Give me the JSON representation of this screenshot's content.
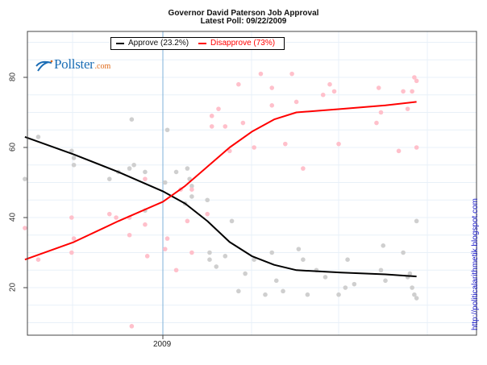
{
  "header": {
    "title": "Governor David Paterson Job Approval",
    "subtitle": "Latest Poll: 09/22/2009"
  },
  "legend": {
    "approve": "Approve (23.2%)",
    "disapprove": "Disapprove (73%)"
  },
  "logo": {
    "name": "Pollster",
    "suffix": ".com"
  },
  "side_url": "http://politicalarithmetik.blogspot.com",
  "axes": {
    "y_ticks": [
      "80",
      "60",
      "40",
      "20"
    ],
    "x_ticks": [
      "2009"
    ]
  },
  "colors": {
    "approve_line": "#000000",
    "disapprove_line": "#ff0000",
    "approve_point": "#cfcfcf",
    "disapprove_point": "#ffc0cb",
    "grid": "#e8f0f8",
    "year_marker": "#7fb2d8"
  },
  "chart_data": {
    "type": "scatter",
    "title": "Governor David Paterson Job Approval",
    "subtitle": "Latest Poll: 09/22/2009",
    "xlabel": "",
    "ylabel": "",
    "x_tick_labels": [
      "2009"
    ],
    "y_ticks": [
      20,
      40,
      60,
      80
    ],
    "ylim": [
      7,
      92
    ],
    "grid": true,
    "legend_position": "top",
    "note": "x values are approximate months relative to Jan 2009 (0 = Jan 1 2009); negative = 2008",
    "series": [
      {
        "name": "Approve",
        "latest": 23.2,
        "color": "#000000",
        "trend": [
          {
            "x": -6.2,
            "y": 63
          },
          {
            "x": -4.0,
            "y": 58
          },
          {
            "x": -2.0,
            "y": 53
          },
          {
            "x": 0,
            "y": 47.5
          },
          {
            "x": 1.0,
            "y": 44
          },
          {
            "x": 2.0,
            "y": 39
          },
          {
            "x": 3.0,
            "y": 33
          },
          {
            "x": 4.0,
            "y": 29
          },
          {
            "x": 5.0,
            "y": 26.5
          },
          {
            "x": 6.0,
            "y": 25
          },
          {
            "x": 8.0,
            "y": 24.3
          },
          {
            "x": 10.0,
            "y": 23.8
          },
          {
            "x": 11.4,
            "y": 23.2
          }
        ],
        "points": [
          {
            "x": -6.2,
            "y": 51
          },
          {
            "x": -5.6,
            "y": 63
          },
          {
            "x": -4.1,
            "y": 59
          },
          {
            "x": -4.0,
            "y": 57
          },
          {
            "x": -4.0,
            "y": 55
          },
          {
            "x": -2.4,
            "y": 51
          },
          {
            "x": -2.0,
            "y": 53
          },
          {
            "x": -1.5,
            "y": 54
          },
          {
            "x": -1.4,
            "y": 68
          },
          {
            "x": -1.3,
            "y": 55
          },
          {
            "x": -0.8,
            "y": 53
          },
          {
            "x": -0.8,
            "y": 42
          },
          {
            "x": 0.1,
            "y": 50
          },
          {
            "x": 0.2,
            "y": 65
          },
          {
            "x": 0.6,
            "y": 53
          },
          {
            "x": 1.0,
            "y": 44
          },
          {
            "x": 1.1,
            "y": 54
          },
          {
            "x": 1.2,
            "y": 51
          },
          {
            "x": 1.3,
            "y": 49
          },
          {
            "x": 1.3,
            "y": 46
          },
          {
            "x": 2.0,
            "y": 45
          },
          {
            "x": 2.1,
            "y": 30
          },
          {
            "x": 2.1,
            "y": 28
          },
          {
            "x": 2.4,
            "y": 26
          },
          {
            "x": 2.8,
            "y": 29
          },
          {
            "x": 3.1,
            "y": 39
          },
          {
            "x": 3.4,
            "y": 19
          },
          {
            "x": 3.7,
            "y": 24
          },
          {
            "x": 4.1,
            "y": 28
          },
          {
            "x": 4.6,
            "y": 18
          },
          {
            "x": 4.9,
            "y": 30
          },
          {
            "x": 5.1,
            "y": 22
          },
          {
            "x": 5.4,
            "y": 19
          },
          {
            "x": 6.1,
            "y": 31
          },
          {
            "x": 6.3,
            "y": 28
          },
          {
            "x": 6.5,
            "y": 18
          },
          {
            "x": 6.9,
            "y": 25
          },
          {
            "x": 7.3,
            "y": 23
          },
          {
            "x": 7.9,
            "y": 18
          },
          {
            "x": 8.2,
            "y": 20
          },
          {
            "x": 8.3,
            "y": 28
          },
          {
            "x": 8.6,
            "y": 21
          },
          {
            "x": 9.8,
            "y": 25
          },
          {
            "x": 9.9,
            "y": 32
          },
          {
            "x": 10.0,
            "y": 22
          },
          {
            "x": 10.8,
            "y": 30
          },
          {
            "x": 11.0,
            "y": 23
          },
          {
            "x": 11.1,
            "y": 24
          },
          {
            "x": 11.2,
            "y": 20
          },
          {
            "x": 11.3,
            "y": 18
          },
          {
            "x": 11.4,
            "y": 17
          },
          {
            "x": 11.4,
            "y": 39
          }
        ]
      },
      {
        "name": "Disapprove",
        "latest": 73,
        "color": "#ff0000",
        "trend": [
          {
            "x": -6.2,
            "y": 28
          },
          {
            "x": -4.0,
            "y": 33
          },
          {
            "x": -2.0,
            "y": 39
          },
          {
            "x": 0,
            "y": 44.5
          },
          {
            "x": 1.0,
            "y": 49
          },
          {
            "x": 2.0,
            "y": 54.5
          },
          {
            "x": 3.0,
            "y": 60
          },
          {
            "x": 4.0,
            "y": 64.5
          },
          {
            "x": 5.0,
            "y": 68
          },
          {
            "x": 6.0,
            "y": 70
          },
          {
            "x": 8.0,
            "y": 71
          },
          {
            "x": 10.0,
            "y": 72
          },
          {
            "x": 11.4,
            "y": 73
          }
        ],
        "points": [
          {
            "x": -6.2,
            "y": 37
          },
          {
            "x": -5.6,
            "y": 28
          },
          {
            "x": -4.1,
            "y": 40
          },
          {
            "x": -4.0,
            "y": 34
          },
          {
            "x": -4.1,
            "y": 30
          },
          {
            "x": -2.4,
            "y": 41
          },
          {
            "x": -2.1,
            "y": 40
          },
          {
            "x": -1.5,
            "y": 40
          },
          {
            "x": -1.5,
            "y": 35
          },
          {
            "x": -1.4,
            "y": 9
          },
          {
            "x": -0.8,
            "y": 38
          },
          {
            "x": -0.8,
            "y": 51
          },
          {
            "x": -0.7,
            "y": 29
          },
          {
            "x": 0.1,
            "y": 31
          },
          {
            "x": 0.2,
            "y": 34
          },
          {
            "x": 0.6,
            "y": 25
          },
          {
            "x": 0.8,
            "y": 48
          },
          {
            "x": 1.1,
            "y": 39
          },
          {
            "x": 1.3,
            "y": 48
          },
          {
            "x": 1.3,
            "y": 30
          },
          {
            "x": 2.0,
            "y": 41
          },
          {
            "x": 2.2,
            "y": 69
          },
          {
            "x": 2.2,
            "y": 66
          },
          {
            "x": 2.5,
            "y": 71
          },
          {
            "x": 2.8,
            "y": 66
          },
          {
            "x": 3.0,
            "y": 59
          },
          {
            "x": 3.4,
            "y": 78
          },
          {
            "x": 3.6,
            "y": 67
          },
          {
            "x": 4.1,
            "y": 60
          },
          {
            "x": 4.4,
            "y": 81
          },
          {
            "x": 4.9,
            "y": 72
          },
          {
            "x": 4.9,
            "y": 77
          },
          {
            "x": 5.5,
            "y": 61
          },
          {
            "x": 5.8,
            "y": 81
          },
          {
            "x": 6.0,
            "y": 73
          },
          {
            "x": 6.3,
            "y": 54
          },
          {
            "x": 7.2,
            "y": 75
          },
          {
            "x": 7.5,
            "y": 78
          },
          {
            "x": 7.7,
            "y": 76
          },
          {
            "x": 7.9,
            "y": 61
          },
          {
            "x": 9.6,
            "y": 67
          },
          {
            "x": 9.7,
            "y": 77
          },
          {
            "x": 9.8,
            "y": 70
          },
          {
            "x": 10.6,
            "y": 59
          },
          {
            "x": 10.8,
            "y": 76
          },
          {
            "x": 11.0,
            "y": 71
          },
          {
            "x": 11.2,
            "y": 76
          },
          {
            "x": 11.3,
            "y": 80
          },
          {
            "x": 11.4,
            "y": 79
          },
          {
            "x": 11.4,
            "y": 60
          }
        ]
      }
    ]
  }
}
